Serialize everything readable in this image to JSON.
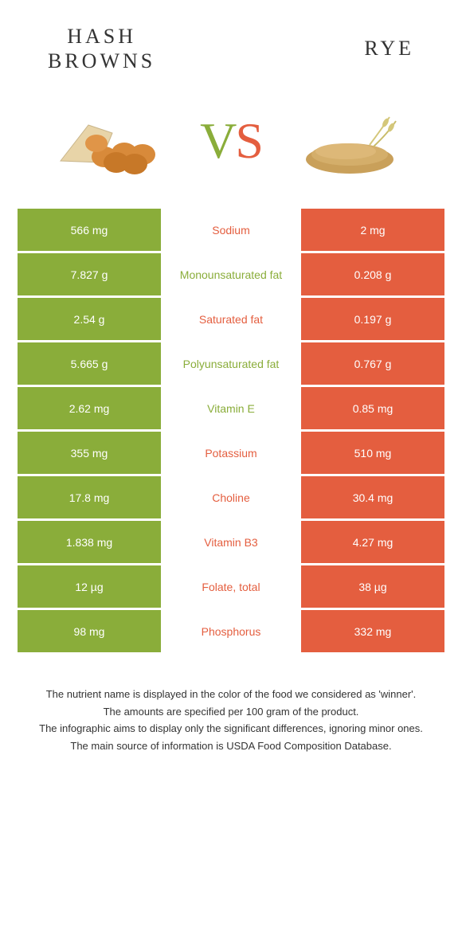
{
  "header": {
    "left_title_line1": "HASH",
    "left_title_line2": "BROWNS",
    "right_title": "RYE"
  },
  "vs": {
    "v": "V",
    "s": "S"
  },
  "colors": {
    "green": "#8aad3a",
    "orange": "#e45e3f",
    "hashbrown_fill": "#d88a3a",
    "hashbrown_bag": "#e8d4a8",
    "rye_grain": "#c9a05a",
    "rye_stalk": "#d4c77a"
  },
  "rows": [
    {
      "left": "566 mg",
      "mid": "Sodium",
      "winner": "orange",
      "right": "2 mg"
    },
    {
      "left": "7.827 g",
      "mid": "Monounsaturated fat",
      "winner": "green",
      "right": "0.208 g"
    },
    {
      "left": "2.54 g",
      "mid": "Saturated fat",
      "winner": "orange",
      "right": "0.197 g"
    },
    {
      "left": "5.665 g",
      "mid": "Polyunsaturated fat",
      "winner": "green",
      "right": "0.767 g"
    },
    {
      "left": "2.62 mg",
      "mid": "Vitamin E",
      "winner": "green",
      "right": "0.85 mg"
    },
    {
      "left": "355 mg",
      "mid": "Potassium",
      "winner": "orange",
      "right": "510 mg"
    },
    {
      "left": "17.8 mg",
      "mid": "Choline",
      "winner": "orange",
      "right": "30.4 mg"
    },
    {
      "left": "1.838 mg",
      "mid": "Vitamin B3",
      "winner": "orange",
      "right": "4.27 mg"
    },
    {
      "left": "12 µg",
      "mid": "Folate, total",
      "winner": "orange",
      "right": "38 µg"
    },
    {
      "left": "98 mg",
      "mid": "Phosphorus",
      "winner": "orange",
      "right": "332 mg"
    }
  ],
  "footer": {
    "line1": "The nutrient name is displayed in the color of the food we considered as 'winner'.",
    "line2": "The amounts are specified per 100 gram of the product.",
    "line3": "The infographic aims to display only the significant differences, ignoring minor ones.",
    "line4": "The main source of information is USDA Food Composition Database."
  }
}
